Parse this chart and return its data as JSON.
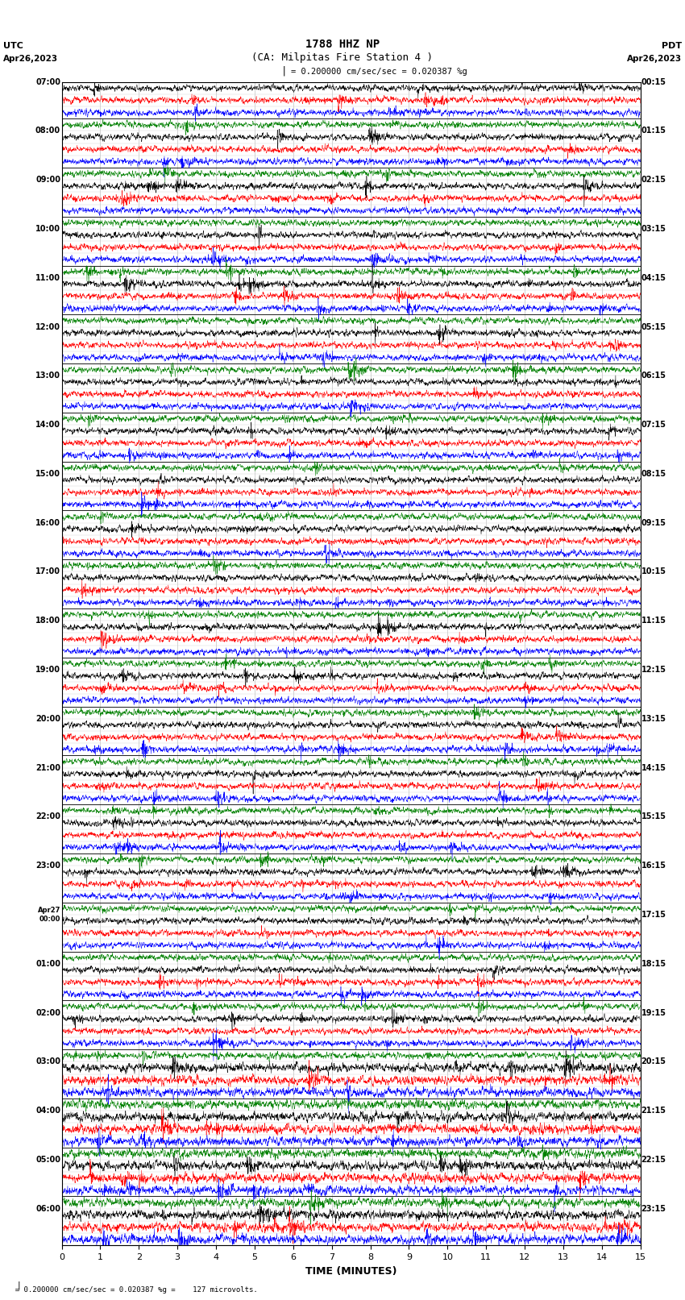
{
  "title_line1": "1788 HHZ NP",
  "title_line2": "(CA: Milpitas Fire Station 4 )",
  "scale_text": "= 0.200000 cm/sec/sec = 0.020387 %g",
  "bottom_text": "= 0.200000 cm/sec/sec = 0.020387 %g =    127 microvolts.",
  "xlabel": "TIME (MINUTES)",
  "xlim": [
    0,
    15
  ],
  "xticks": [
    0,
    1,
    2,
    3,
    4,
    5,
    6,
    7,
    8,
    9,
    10,
    11,
    12,
    13,
    14,
    15
  ],
  "bg_color": "#ffffff",
  "trace_colors_cycle": [
    "black",
    "red",
    "blue",
    "green"
  ],
  "utc_labels": [
    "07:00",
    "",
    "",
    "",
    "08:00",
    "",
    "",
    "",
    "09:00",
    "",
    "",
    "",
    "10:00",
    "",
    "",
    "",
    "11:00",
    "",
    "",
    "",
    "12:00",
    "",
    "",
    "",
    "13:00",
    "",
    "",
    "",
    "14:00",
    "",
    "",
    "",
    "15:00",
    "",
    "",
    "",
    "16:00",
    "",
    "",
    "",
    "17:00",
    "",
    "",
    "",
    "18:00",
    "",
    "",
    "",
    "19:00",
    "",
    "",
    "",
    "20:00",
    "",
    "",
    "",
    "21:00",
    "",
    "",
    "",
    "22:00",
    "",
    "",
    "",
    "23:00",
    "",
    "",
    "",
    "Apr27\n00:00",
    "",
    "",
    "",
    "01:00",
    "",
    "",
    "",
    "02:00",
    "",
    "",
    "",
    "03:00",
    "",
    "",
    "",
    "04:00",
    "",
    "",
    "",
    "05:00",
    "",
    "",
    "",
    "06:00",
    "",
    ""
  ],
  "pdt_labels": [
    "00:15",
    "",
    "",
    "",
    "01:15",
    "",
    "",
    "",
    "02:15",
    "",
    "",
    "",
    "03:15",
    "",
    "",
    "",
    "04:15",
    "",
    "",
    "",
    "05:15",
    "",
    "",
    "",
    "06:15",
    "",
    "",
    "",
    "07:15",
    "",
    "",
    "",
    "08:15",
    "",
    "",
    "",
    "09:15",
    "",
    "",
    "",
    "10:15",
    "",
    "",
    "",
    "11:15",
    "",
    "",
    "",
    "12:15",
    "",
    "",
    "",
    "13:15",
    "",
    "",
    "",
    "14:15",
    "",
    "",
    "",
    "15:15",
    "",
    "",
    "",
    "16:15",
    "",
    "",
    "",
    "17:15",
    "",
    "",
    "",
    "18:15",
    "",
    "",
    "",
    "19:15",
    "",
    "",
    "",
    "20:15",
    "",
    "",
    "",
    "21:15",
    "",
    "",
    "",
    "22:15",
    "",
    "",
    "",
    "23:15",
    "",
    ""
  ],
  "n_rows": 95,
  "fig_width": 8.5,
  "fig_height": 16.13,
  "dpi": 100
}
